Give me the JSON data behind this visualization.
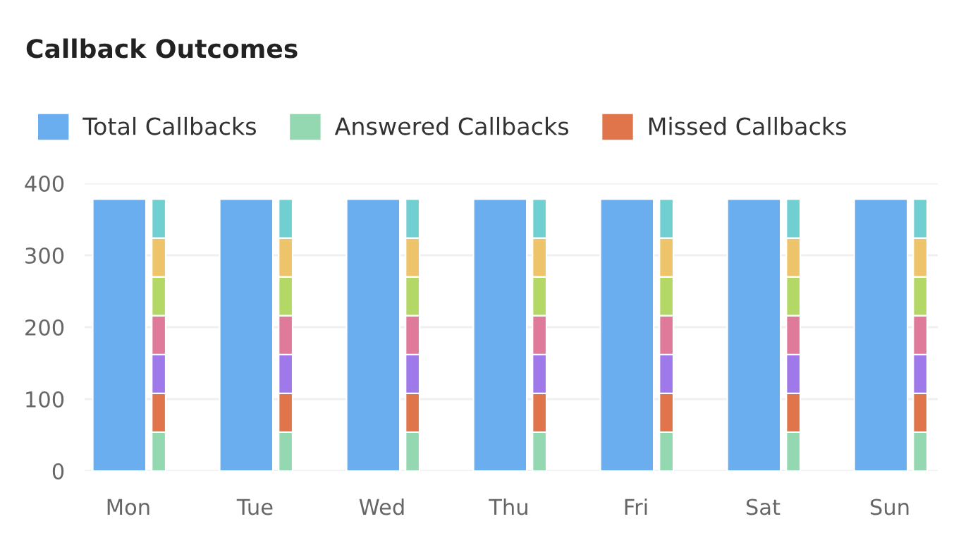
{
  "chart_data": {
    "type": "bar",
    "title": "Callback Outcomes",
    "categories": [
      "Mon",
      "Tue",
      "Wed",
      "Thu",
      "Fri",
      "Sat",
      "Sun"
    ],
    "series": [
      {
        "name": "Total Callbacks",
        "color": "#6aaef0",
        "values": [
          378,
          378,
          378,
          378,
          378,
          378,
          378
        ]
      },
      {
        "name": "Answered Callbacks",
        "color": "#94d8b2",
        "values": [
          54,
          54,
          54,
          54,
          54,
          54,
          54
        ],
        "base": [
          0,
          0,
          0,
          0,
          0,
          0,
          0
        ]
      },
      {
        "name": "Missed Callbacks",
        "color": "#e0754b",
        "values": [
          54,
          54,
          54,
          54,
          54,
          54,
          54
        ],
        "base": [
          54,
          54,
          54,
          54,
          54,
          54,
          54
        ]
      },
      {
        "color": "#9f78ea",
        "values": [
          54,
          54,
          54,
          54,
          54,
          54,
          54
        ],
        "base": [
          108,
          108,
          108,
          108,
          108,
          108,
          108
        ]
      },
      {
        "color": "#e07a9a",
        "values": [
          54,
          54,
          54,
          54,
          54,
          54,
          54
        ],
        "base": [
          162,
          162,
          162,
          162,
          162,
          162,
          162
        ]
      },
      {
        "color": "#b3d865",
        "values": [
          54,
          54,
          54,
          54,
          54,
          54,
          54
        ],
        "base": [
          216,
          216,
          216,
          216,
          216,
          216,
          216
        ]
      },
      {
        "color": "#eec46b",
        "values": [
          54,
          54,
          54,
          54,
          54,
          54,
          54
        ],
        "base": [
          270,
          270,
          270,
          270,
          270,
          270,
          270
        ]
      },
      {
        "color": "#70cfd0",
        "values": [
          54,
          54,
          54,
          54,
          54,
          54,
          54
        ],
        "base": [
          324,
          324,
          324,
          324,
          324,
          324,
          324
        ]
      }
    ],
    "ylim": [
      0,
      400
    ],
    "yticks": [
      0,
      100,
      200,
      300,
      400
    ],
    "grid": "y",
    "legend": "top left"
  }
}
